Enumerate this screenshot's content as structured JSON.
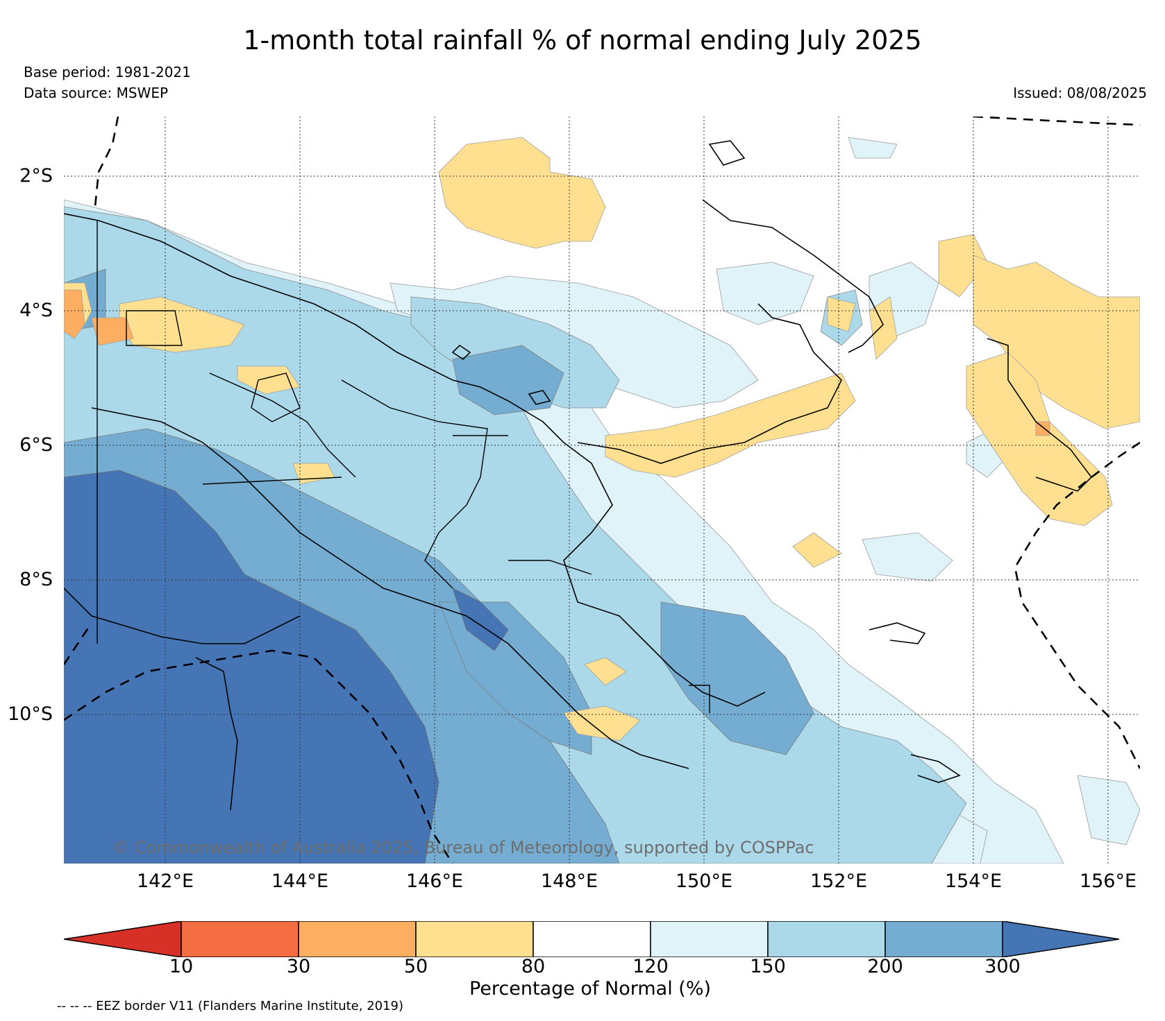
{
  "title": "1-month total rainfall % of normal ending July 2025",
  "base_period": "Base period: 1981-2021",
  "data_source": "Data source: MSWEP",
  "issued": "Issued: 08/08/2025",
  "copyright": "© Commonwealth of Australia 2025, Bureau of Meteorology, supported by COSPPac",
  "lat_labels": [
    "2°S",
    "4°S",
    "6°S",
    "8°S",
    "10°S"
  ],
  "lon_labels": [
    "142°E",
    "144°E",
    "146°E",
    "148°E",
    "150°E",
    "152°E",
    "154°E",
    "156°E"
  ],
  "colorbar": {
    "label": "Percentage of Normal (%)",
    "ticks": [
      "10",
      "30",
      "50",
      "80",
      "120",
      "150",
      "200",
      "300"
    ],
    "colors": [
      "#d73027",
      "#f46d43",
      "#fdae61",
      "#fee090",
      "#ffffff",
      "#e0f3f8",
      "#abd9e9",
      "#74add1",
      "#4575b4"
    ]
  },
  "footnote": "-- -- -- EEZ border V11 (Flanders Marine Institute, 2019)"
}
